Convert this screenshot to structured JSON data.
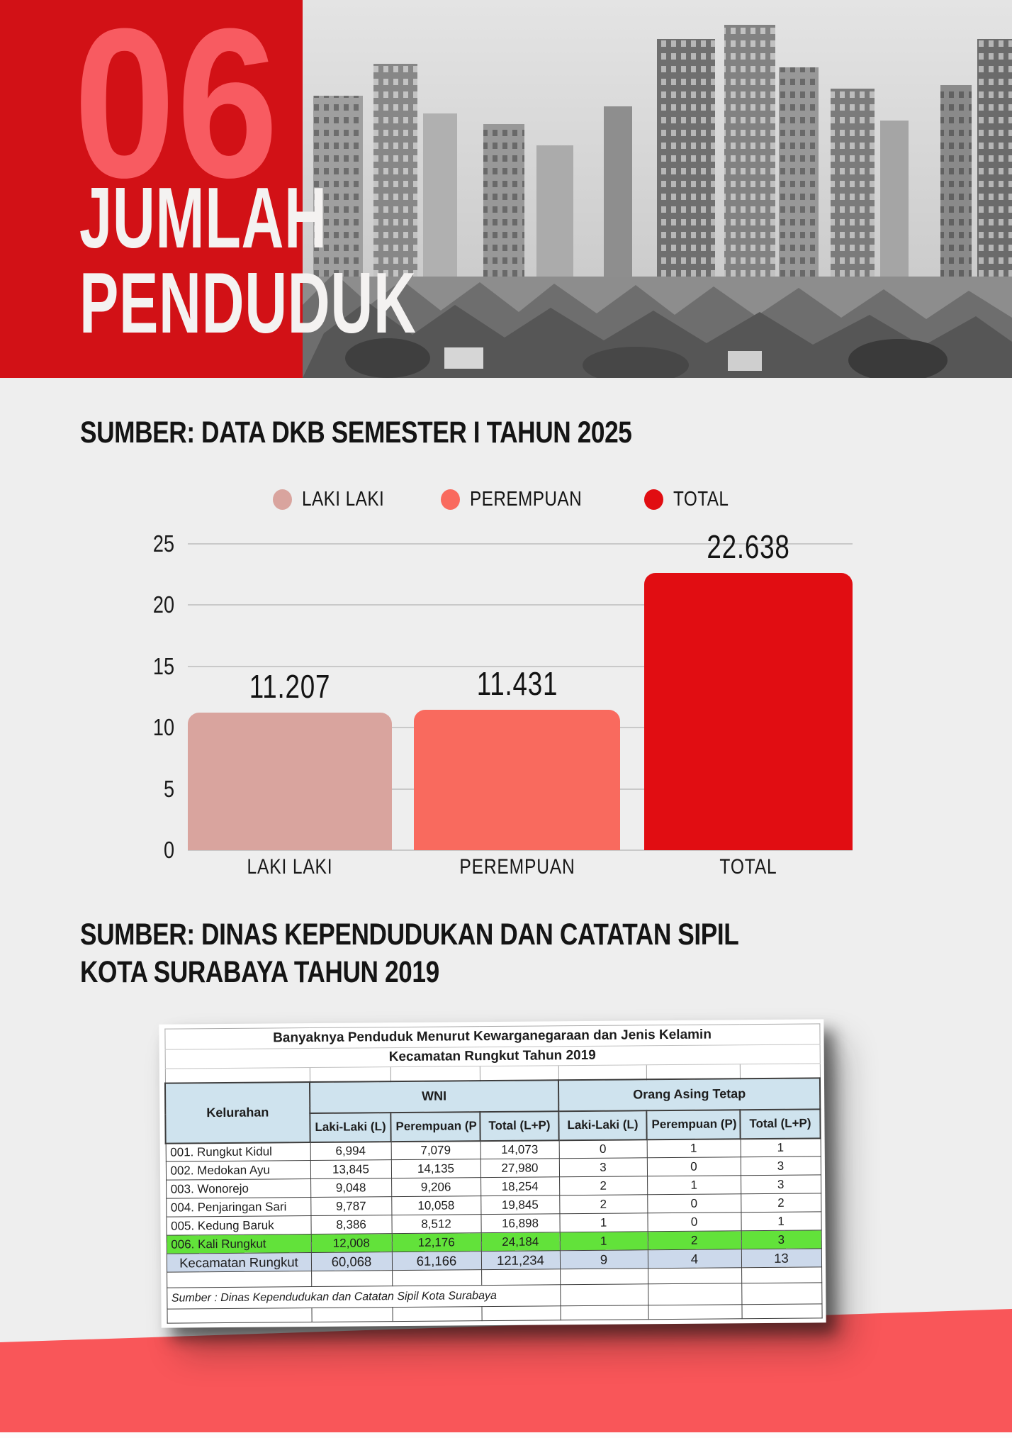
{
  "colors": {
    "page_bg": "#eeeeee",
    "banner_red": "#d21116",
    "number_pink": "#f85b61",
    "title_text": "#f4f2f1",
    "heading_text": "#141414",
    "coral": "#f95659",
    "header_blue": "#cfe3ee",
    "highlight_green": "#62e23a",
    "total_row_blue": "#ccd9eb"
  },
  "banner": {
    "number": "06",
    "title_line1": "JUMLAH",
    "title_line2": "PENDUDUK"
  },
  "section1": {
    "heading": "SUMBER: DATA DKB SEMESTER I TAHUN 2025"
  },
  "chart_data": {
    "type": "bar",
    "title": "",
    "categories": [
      "LAKI LAKI",
      "PEREMPUAN",
      "TOTAL"
    ],
    "values": [
      11.207,
      11.431,
      22.638
    ],
    "value_labels": [
      "11.207",
      "11.431",
      "22.638"
    ],
    "series_colors": [
      "#d9a49e",
      "#f96a5e",
      "#e10d12"
    ],
    "legend": [
      {
        "label": "LAKI LAKI",
        "color": "#d9a49e"
      },
      {
        "label": "PEREMPUAN",
        "color": "#f96a5e"
      },
      {
        "label": "TOTAL",
        "color": "#e10d12"
      }
    ],
    "xlabel": "",
    "ylabel": "",
    "ylim": [
      0,
      25
    ],
    "yticks": [
      25,
      20,
      15,
      10,
      5,
      0
    ],
    "grid": true,
    "legend_position": "top"
  },
  "section2": {
    "heading_line1": "SUMBER: DINAS KEPENDUDUKAN DAN CATATAN SIPIL",
    "heading_line2": "KOTA SURABAYA TAHUN 2019"
  },
  "table": {
    "title_line1": "Banyaknya Penduduk Menurut Kewarganegaraan dan Jenis Kelamin",
    "title_line2": "Kecamatan Rungkut Tahun 2019",
    "corner_header": "Kelurahan",
    "group_headers": [
      "WNI",
      "Orang Asing Tetap"
    ],
    "sub_headers": [
      "Laki-Laki (L)",
      "Perempuan (P",
      "Total (L+P)",
      "Laki-Laki (L)",
      "Perempuan (P)",
      "Total (L+P)"
    ],
    "rows": [
      {
        "kelurahan": "001. Rungkut Kidul",
        "values": [
          "6,994",
          "7,079",
          "14,073",
          "0",
          "1",
          "1"
        ]
      },
      {
        "kelurahan": "002. Medokan Ayu",
        "values": [
          "13,845",
          "14,135",
          "27,980",
          "3",
          "0",
          "3"
        ]
      },
      {
        "kelurahan": "003. Wonorejo",
        "values": [
          "9,048",
          "9,206",
          "18,254",
          "2",
          "1",
          "3"
        ]
      },
      {
        "kelurahan": "004. Penjaringan Sari",
        "values": [
          "9,787",
          "10,058",
          "19,845",
          "2",
          "0",
          "2"
        ]
      },
      {
        "kelurahan": "005. Kedung Baruk",
        "values": [
          "8,386",
          "8,512",
          "16,898",
          "1",
          "0",
          "1"
        ]
      },
      {
        "kelurahan": "006. Kali Rungkut",
        "values": [
          "12,008",
          "12,176",
          "24,184",
          "1",
          "2",
          "3"
        ],
        "highlight": "green"
      },
      {
        "kelurahan": "Kecamatan Rungkut",
        "values": [
          "60,068",
          "61,166",
          "121,234",
          "9",
          "4",
          "13"
        ],
        "highlight": "blue"
      }
    ],
    "footnote": "Sumber : Dinas Kependudukan dan Catatan Sipil Kota Surabaya"
  }
}
